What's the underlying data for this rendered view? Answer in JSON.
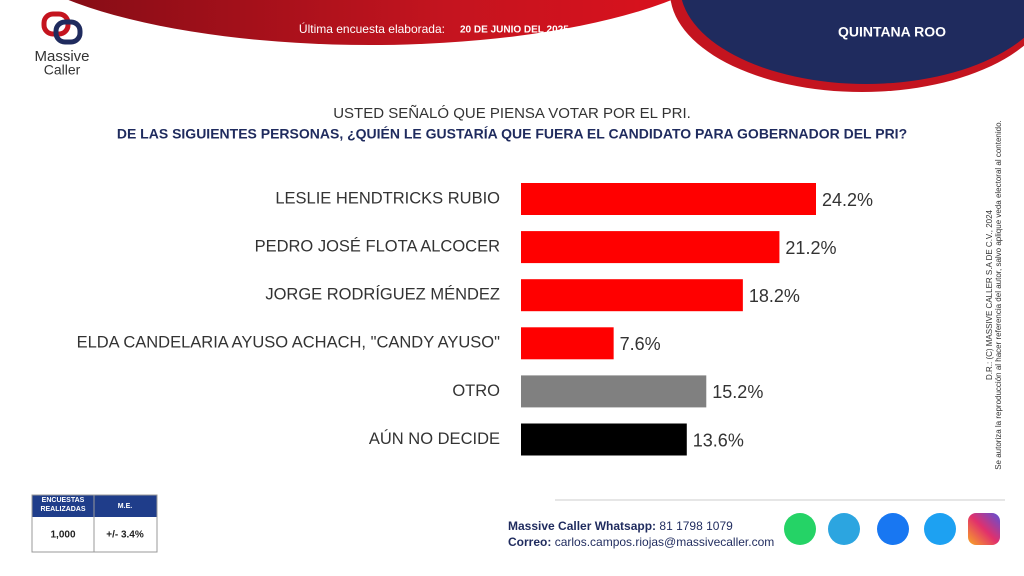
{
  "header": {
    "brand_top": "Massive",
    "brand_bottom": "Caller",
    "survey_label": "Última encuesta elaborada:",
    "survey_date": "20 DE JUNIO DEL 2025",
    "region": "QUINTANA ROO"
  },
  "chart_data": {
    "type": "hbar",
    "subtitle": "USTED SEÑALÓ QUE PIENSA VOTAR POR EL PRI.",
    "title": "DE LAS SIGUIENTES PERSONAS, ¿QUIÉN LE GUSTARÍA QUE FUERA EL CANDIDATO PARA GOBERNADOR DEL PRI?",
    "categories": [
      "LESLIE HENDTRICKS RUBIO",
      "PEDRO JOSÉ FLOTA ALCOCER",
      "JORGE RODRÍGUEZ MÉNDEZ",
      "ELDA CANDELARIA AYUSO ACHACH, \"CANDY AYUSO\"",
      "OTRO",
      "AÚN NO DECIDE"
    ],
    "values": [
      24.2,
      21.2,
      18.2,
      7.6,
      15.2,
      13.6
    ],
    "value_labels": [
      "24.2%",
      "21.2%",
      "18.2%",
      "7.6%",
      "15.2%",
      "13.6%"
    ],
    "colors": [
      "#ff0000",
      "#ff0000",
      "#ff0000",
      "#ff0000",
      "#808080",
      "#000000"
    ]
  },
  "side_note": {
    "line1": "D.R.: (C) MASSIVE CALLER S.A DE C.V., 2024",
    "line2": "Se autoriza la reproducción al hacer referencia del autor, salvo aplique veda electoral al contenido."
  },
  "table": {
    "header": [
      "ENCUESTAS REALIZADAS",
      "M.E."
    ],
    "row": [
      "1,000",
      "+/- 3.4%"
    ]
  },
  "footer": {
    "whatsapp_label": "Massive Caller Whatsapp:",
    "whatsapp": "81 1798 1079",
    "email_label": "Correo:",
    "email": "carlos.campos.riojas@massivecaller.com"
  }
}
